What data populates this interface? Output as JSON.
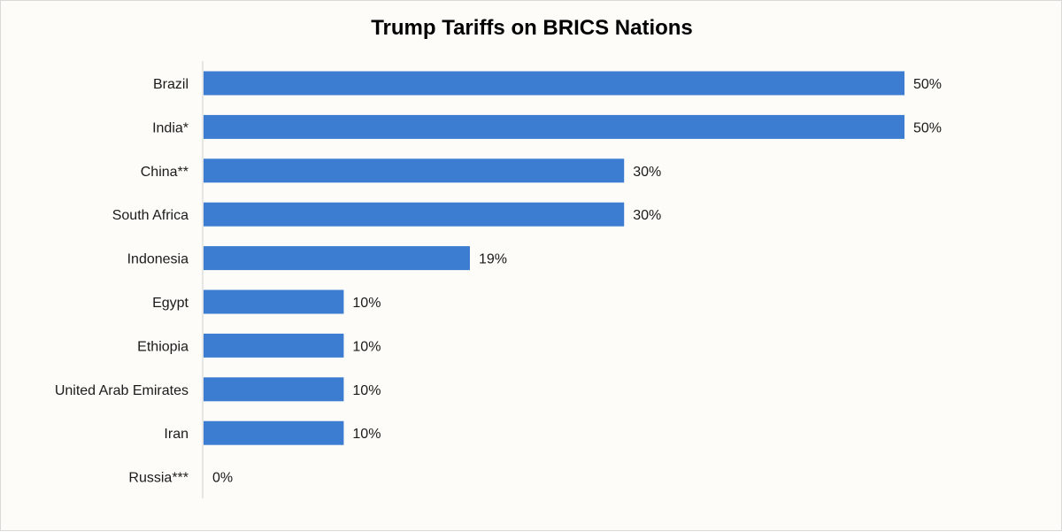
{
  "chart_data": {
    "type": "bar",
    "orientation": "horizontal",
    "title": "Trump Tariffs on BRICS Nations",
    "xlabel": "",
    "ylabel": "",
    "categories": [
      "Brazil",
      "India*",
      "China**",
      "South Africa",
      "Indonesia",
      "Egypt",
      "Ethiopia",
      "United Arab Emirates",
      "Iran",
      "Russia***"
    ],
    "values": [
      50,
      50,
      30,
      30,
      19,
      10,
      10,
      10,
      10,
      0
    ],
    "value_labels": [
      "50%",
      "50%",
      "30%",
      "30%",
      "19%",
      "10%",
      "10%",
      "10%",
      "10%",
      "0%"
    ],
    "value_unit": "%",
    "xlim": [
      0,
      50
    ],
    "grid": false,
    "legend": "none",
    "bar_color": "#3c7dd1"
  }
}
